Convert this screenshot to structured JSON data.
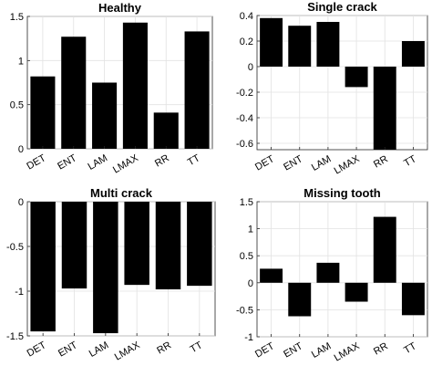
{
  "chart_data": [
    {
      "type": "bar",
      "title": "Healthy",
      "categories": [
        "DET",
        "ENT",
        "LAM",
        "LMAX",
        "RR",
        "TT"
      ],
      "values": [
        0.82,
        1.27,
        0.75,
        1.43,
        0.41,
        1.33
      ],
      "ylim": [
        0,
        1.5
      ],
      "yticks": [
        0,
        0.5,
        1,
        1.5
      ],
      "ytick_labels": [
        "0",
        "0.5",
        "1",
        "1.5"
      ],
      "grid": true,
      "bar_color": "#000000"
    },
    {
      "type": "bar",
      "title": "Single crack",
      "categories": [
        "DET",
        "ENT",
        "LAM",
        "LMAX",
        "RR",
        "TT"
      ],
      "values": [
        0.38,
        0.32,
        0.35,
        -0.16,
        -0.65,
        0.2
      ],
      "ylim": [
        -0.65,
        0.4
      ],
      "yticks": [
        -0.6,
        -0.4,
        -0.2,
        0,
        0.2,
        0.4
      ],
      "ytick_labels": [
        "-0.6",
        "-0.4",
        "-0.2",
        "0",
        "0.2",
        "0.4"
      ],
      "grid": true,
      "bar_color": "#000000"
    },
    {
      "type": "bar",
      "title": "Multi crack",
      "categories": [
        "DET",
        "ENT",
        "LAM",
        "LMAX",
        "RR",
        "TT"
      ],
      "values": [
        -1.45,
        -0.97,
        -1.47,
        -0.93,
        -0.98,
        -0.94
      ],
      "ylim": [
        -1.5,
        0
      ],
      "yticks": [
        -1.5,
        -1,
        -0.5,
        0
      ],
      "ytick_labels": [
        "-1.5",
        "-1",
        "-0.5",
        "0"
      ],
      "grid": true,
      "bar_color": "#000000"
    },
    {
      "type": "bar",
      "title": "Missing tooth",
      "categories": [
        "DET",
        "ENT",
        "LAM",
        "LMAX",
        "RR",
        "TT"
      ],
      "values": [
        0.26,
        -0.62,
        0.37,
        -0.35,
        1.22,
        -0.6
      ],
      "ylim": [
        -1,
        1.5
      ],
      "yticks": [
        -1,
        -0.5,
        0,
        0.5,
        1,
        1.5
      ],
      "ytick_labels": [
        "-1",
        "-0.5",
        "0",
        "0.5",
        "1",
        "1.5"
      ],
      "grid": true,
      "bar_color": "#000000"
    }
  ]
}
